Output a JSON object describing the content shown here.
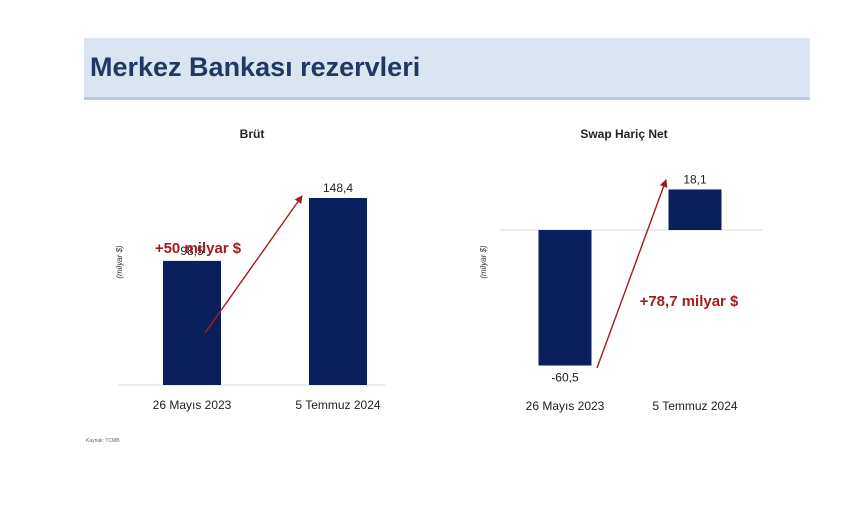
{
  "header": {
    "title": "Merkez Bankası rezervleri"
  },
  "footer": {
    "source": "Kaynak: TCMB"
  },
  "chart_data": [
    {
      "type": "bar",
      "title": "Brüt",
      "ylabel": "(milyar $)",
      "categories": [
        "26 Mayıs 2023",
        "5 Temmuz 2024"
      ],
      "values": [
        98.5,
        148.4
      ],
      "value_labels": [
        "98,5",
        "148,4"
      ],
      "annotation": "+50 milyar $",
      "color": "#0b1f5c",
      "annotation_color": "#a31d1d"
    },
    {
      "type": "bar",
      "title": "Swap Hariç Net",
      "ylabel": "(milyar $)",
      "categories": [
        "26 Mayıs 2023",
        "5 Temmuz 2024"
      ],
      "values": [
        -60.5,
        18.1
      ],
      "value_labels": [
        "-60,5",
        "18,1"
      ],
      "annotation": "+78,7 milyar $",
      "color": "#0b1f5c",
      "annotation_color": "#a31d1d"
    }
  ]
}
